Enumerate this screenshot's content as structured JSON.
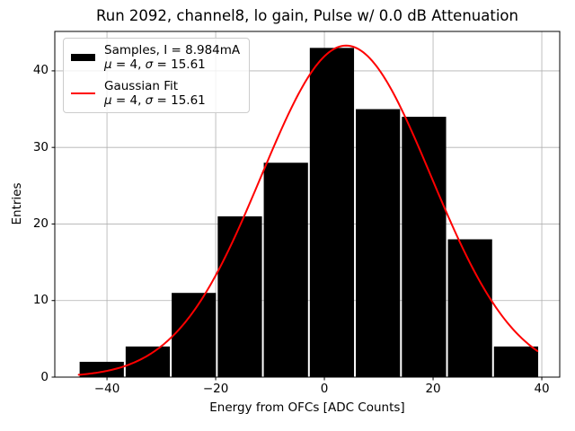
{
  "title": "Run 2092, channel8, lo gain, Pulse w/ 0.0 dB Attenuation",
  "legend": {
    "position": "upper-left",
    "items": [
      {
        "swatch": "black-patch",
        "swatch_color": "#000000",
        "line1": "Samples, I = 8.984mA",
        "line2": "μ = 4, σ = 15.61"
      },
      {
        "swatch": "red-line",
        "swatch_color": "#ff0000",
        "line1": "Gaussian Fit",
        "line2": "μ = 4, σ = 15.61"
      }
    ]
  },
  "chart_data": {
    "type": "bar",
    "subtype": "histogram",
    "title": "Run 2092, channel8, lo gain, Pulse w/ 0.0 dB Attenuation",
    "xlabel": "Energy from OFCs [ADC Counts]",
    "ylabel": "Entries",
    "bin_edges": [
      -45.2,
      -36.73,
      -28.26,
      -19.79,
      -11.32,
      -2.85,
      5.62,
      14.09,
      22.56,
      31.03,
      39.5
    ],
    "counts": [
      2,
      4,
      11,
      21,
      28,
      43,
      35,
      34,
      18,
      4
    ],
    "fit": {
      "type": "gaussian",
      "mu": 4,
      "sigma": 15.61,
      "amplitude": 43.3,
      "x_range": [
        -45.2,
        39.5
      ]
    },
    "xlim": [
      -49.6,
      43.3
    ],
    "ylim": [
      0,
      45.15
    ],
    "xticks": [
      -40,
      -20,
      0,
      20,
      40
    ],
    "yticks": [
      0,
      10,
      20,
      30,
      40
    ],
    "xtick_labels": [
      "−40",
      "−20",
      "0",
      "20",
      "40"
    ],
    "ytick_labels": [
      "0",
      "10",
      "20",
      "30",
      "40"
    ],
    "grid": true,
    "legend_position": "upper-left",
    "colors": {
      "bar": "#000000",
      "fit_line": "#ff0000",
      "grid": "#b0b0b0",
      "axes": "#000000"
    }
  }
}
